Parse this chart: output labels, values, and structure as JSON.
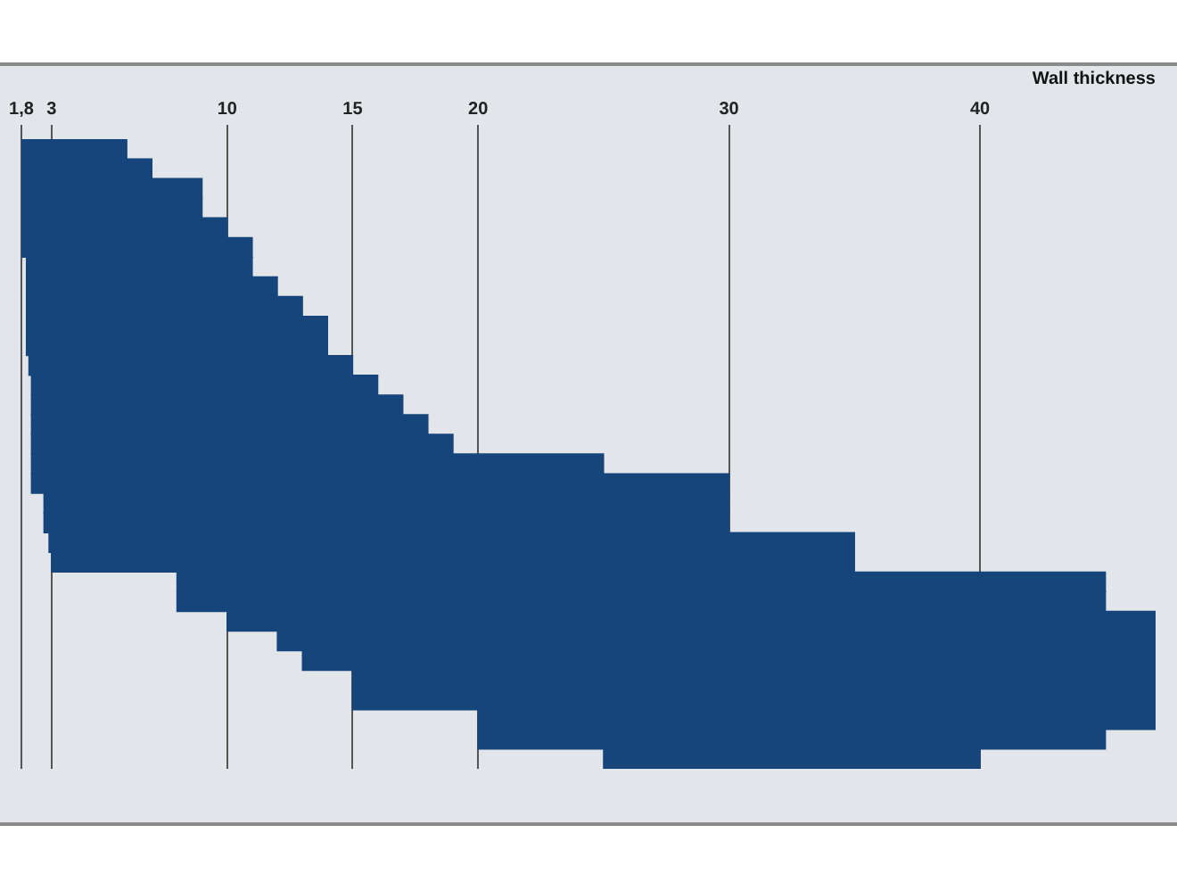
{
  "chart_data": {
    "type": "bar",
    "orientation": "horizontal",
    "xlabel": "Wall thickness",
    "categories": [
      null,
      null,
      null,
      null,
      null,
      null,
      null,
      null,
      null,
      null,
      null,
      null,
      null,
      null,
      null,
      null,
      null,
      null,
      null,
      null,
      null,
      null,
      null,
      null,
      null,
      null,
      null,
      null,
      null,
      null,
      null,
      null
    ],
    "base": [
      1.8,
      1.8,
      1.8,
      1.8,
      1.8,
      1.8,
      2.0,
      2.0,
      2.0,
      2.0,
      2.0,
      2.1,
      2.2,
      2.2,
      2.2,
      2.2,
      2.2,
      2.2,
      2.7,
      2.7,
      2.9,
      3,
      8,
      8,
      10,
      12,
      13,
      15,
      15,
      20,
      20,
      25
    ],
    "values": [
      4.2,
      5.2,
      7.2,
      7.2,
      8.2,
      9.2,
      9,
      10,
      11,
      12,
      12,
      12.9,
      13.8,
      14.8,
      15.8,
      16.8,
      22.8,
      27.8,
      27.3,
      27.3,
      32.1,
      32,
      37,
      37,
      37,
      35,
      34,
      32,
      32,
      27,
      25,
      15
    ],
    "color": "#15457a",
    "xlim": [
      1.8,
      47
    ],
    "xticks": [
      {
        "value": 1.8,
        "label": "1,8"
      },
      3,
      10,
      15,
      20,
      30,
      40
    ],
    "grid": "x",
    "tick_labels": "x",
    "legend": false
  }
}
